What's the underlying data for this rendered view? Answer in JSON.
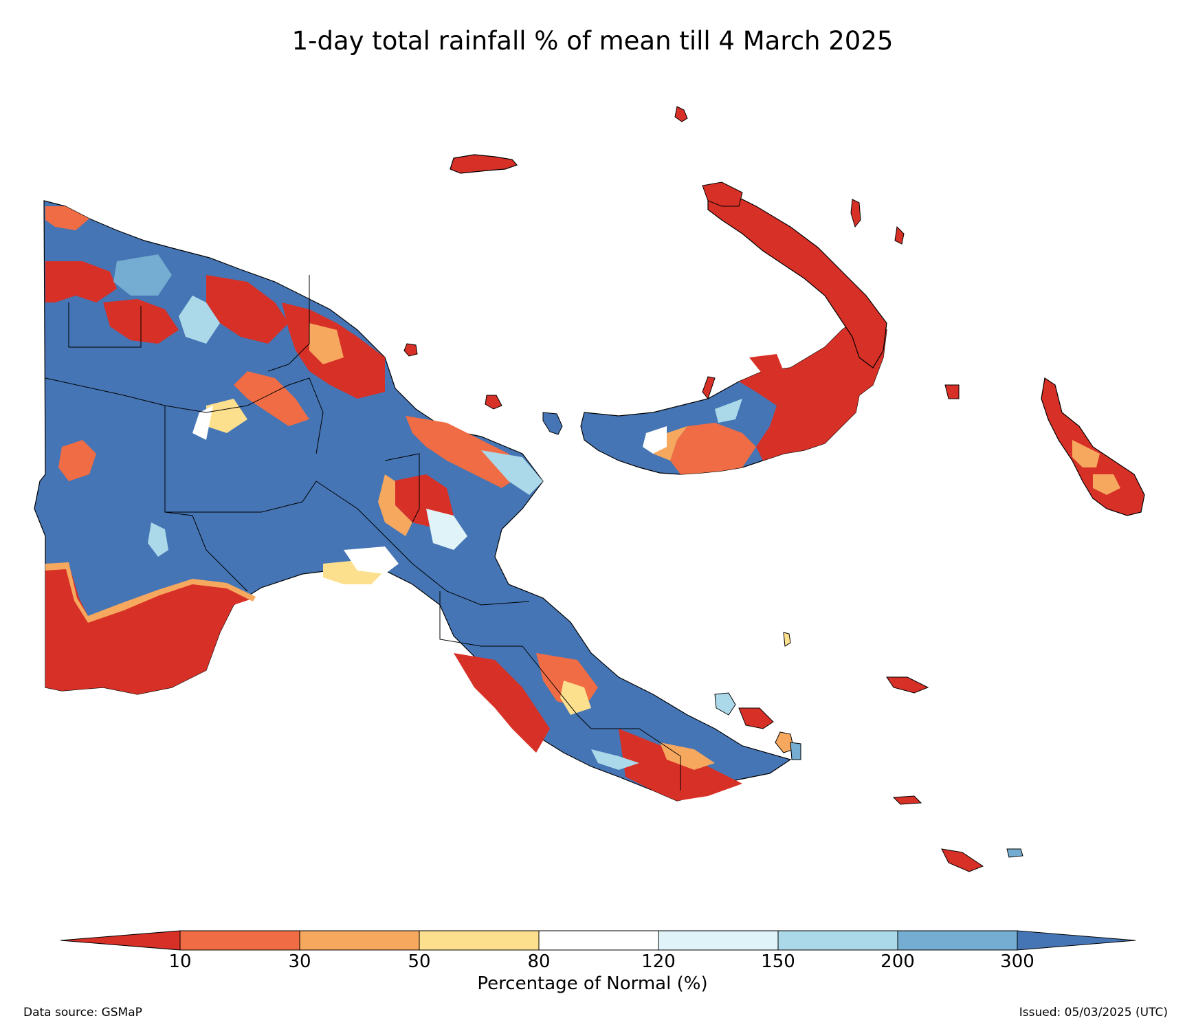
{
  "title": "1-day total rainfall % of mean till 4 March 2025",
  "colorbar": {
    "label": "Percentage of Normal (%)",
    "ticks": [
      "10",
      "30",
      "50",
      "80",
      "120",
      "150",
      "200",
      "300"
    ],
    "colors": {
      "below_10": "#d73027",
      "10_30": "#f06c44",
      "30_50": "#f7a85f",
      "50_80": "#fde08e",
      "80_120": "#ffffff",
      "120_150": "#e0f3f8",
      "150_200": "#abd9e9",
      "200_300": "#74add1",
      "above_300": "#4575b4"
    }
  },
  "footer": {
    "source": "Data source: GSMaP",
    "issued": "Issued: 05/03/2025 (UTC)"
  }
}
